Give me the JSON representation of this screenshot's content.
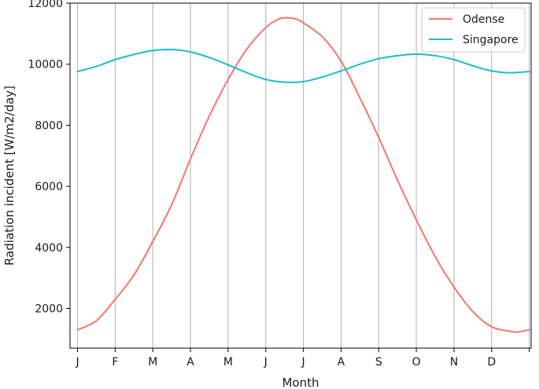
{
  "chart_data": {
    "type": "line",
    "xlabel": "Month",
    "ylabel": "Radiation incident [W/m2/day]",
    "x_ticks": [
      "J",
      "F",
      "M",
      "A",
      "M",
      "J",
      "J",
      "A",
      "S",
      "O",
      "N",
      "D",
      ""
    ],
    "y_ticks": [
      2000,
      4000,
      6000,
      8000,
      10000,
      12000
    ],
    "xlim": [
      -0.2,
      12.05
    ],
    "ylim": [
      700,
      12000
    ],
    "grid": "vertical",
    "legend_position": "top-right",
    "series": [
      {
        "name": "Odense",
        "color": "#f8766d",
        "x": [
          0,
          0.5,
          1,
          1.5,
          2,
          2.5,
          3,
          3.5,
          4,
          4.5,
          5,
          5.3,
          5.5,
          5.8,
          6,
          6.5,
          7,
          7.5,
          8,
          8.5,
          9,
          9.5,
          10,
          10.5,
          11,
          11.5,
          11.7,
          12
        ],
        "values": [
          1300,
          1600,
          2300,
          3100,
          4200,
          5400,
          6900,
          8300,
          9500,
          10500,
          11200,
          11450,
          11520,
          11480,
          11350,
          10900,
          10100,
          8900,
          7600,
          6200,
          4900,
          3700,
          2700,
          1900,
          1400,
          1250,
          1230,
          1300
        ]
      },
      {
        "name": "Singapore",
        "color": "#17becf",
        "x": [
          0,
          0.5,
          1,
          1.5,
          2,
          2.5,
          3,
          3.5,
          4,
          4.5,
          5,
          5.5,
          6,
          6.5,
          7,
          7.5,
          8,
          8.5,
          9,
          9.5,
          10,
          10.5,
          11,
          11.5,
          12
        ],
        "values": [
          9760,
          9930,
          10150,
          10320,
          10450,
          10480,
          10400,
          10220,
          9980,
          9720,
          9500,
          9410,
          9430,
          9580,
          9780,
          10000,
          10180,
          10280,
          10330,
          10280,
          10150,
          9950,
          9780,
          9720,
          9760
        ]
      }
    ]
  }
}
